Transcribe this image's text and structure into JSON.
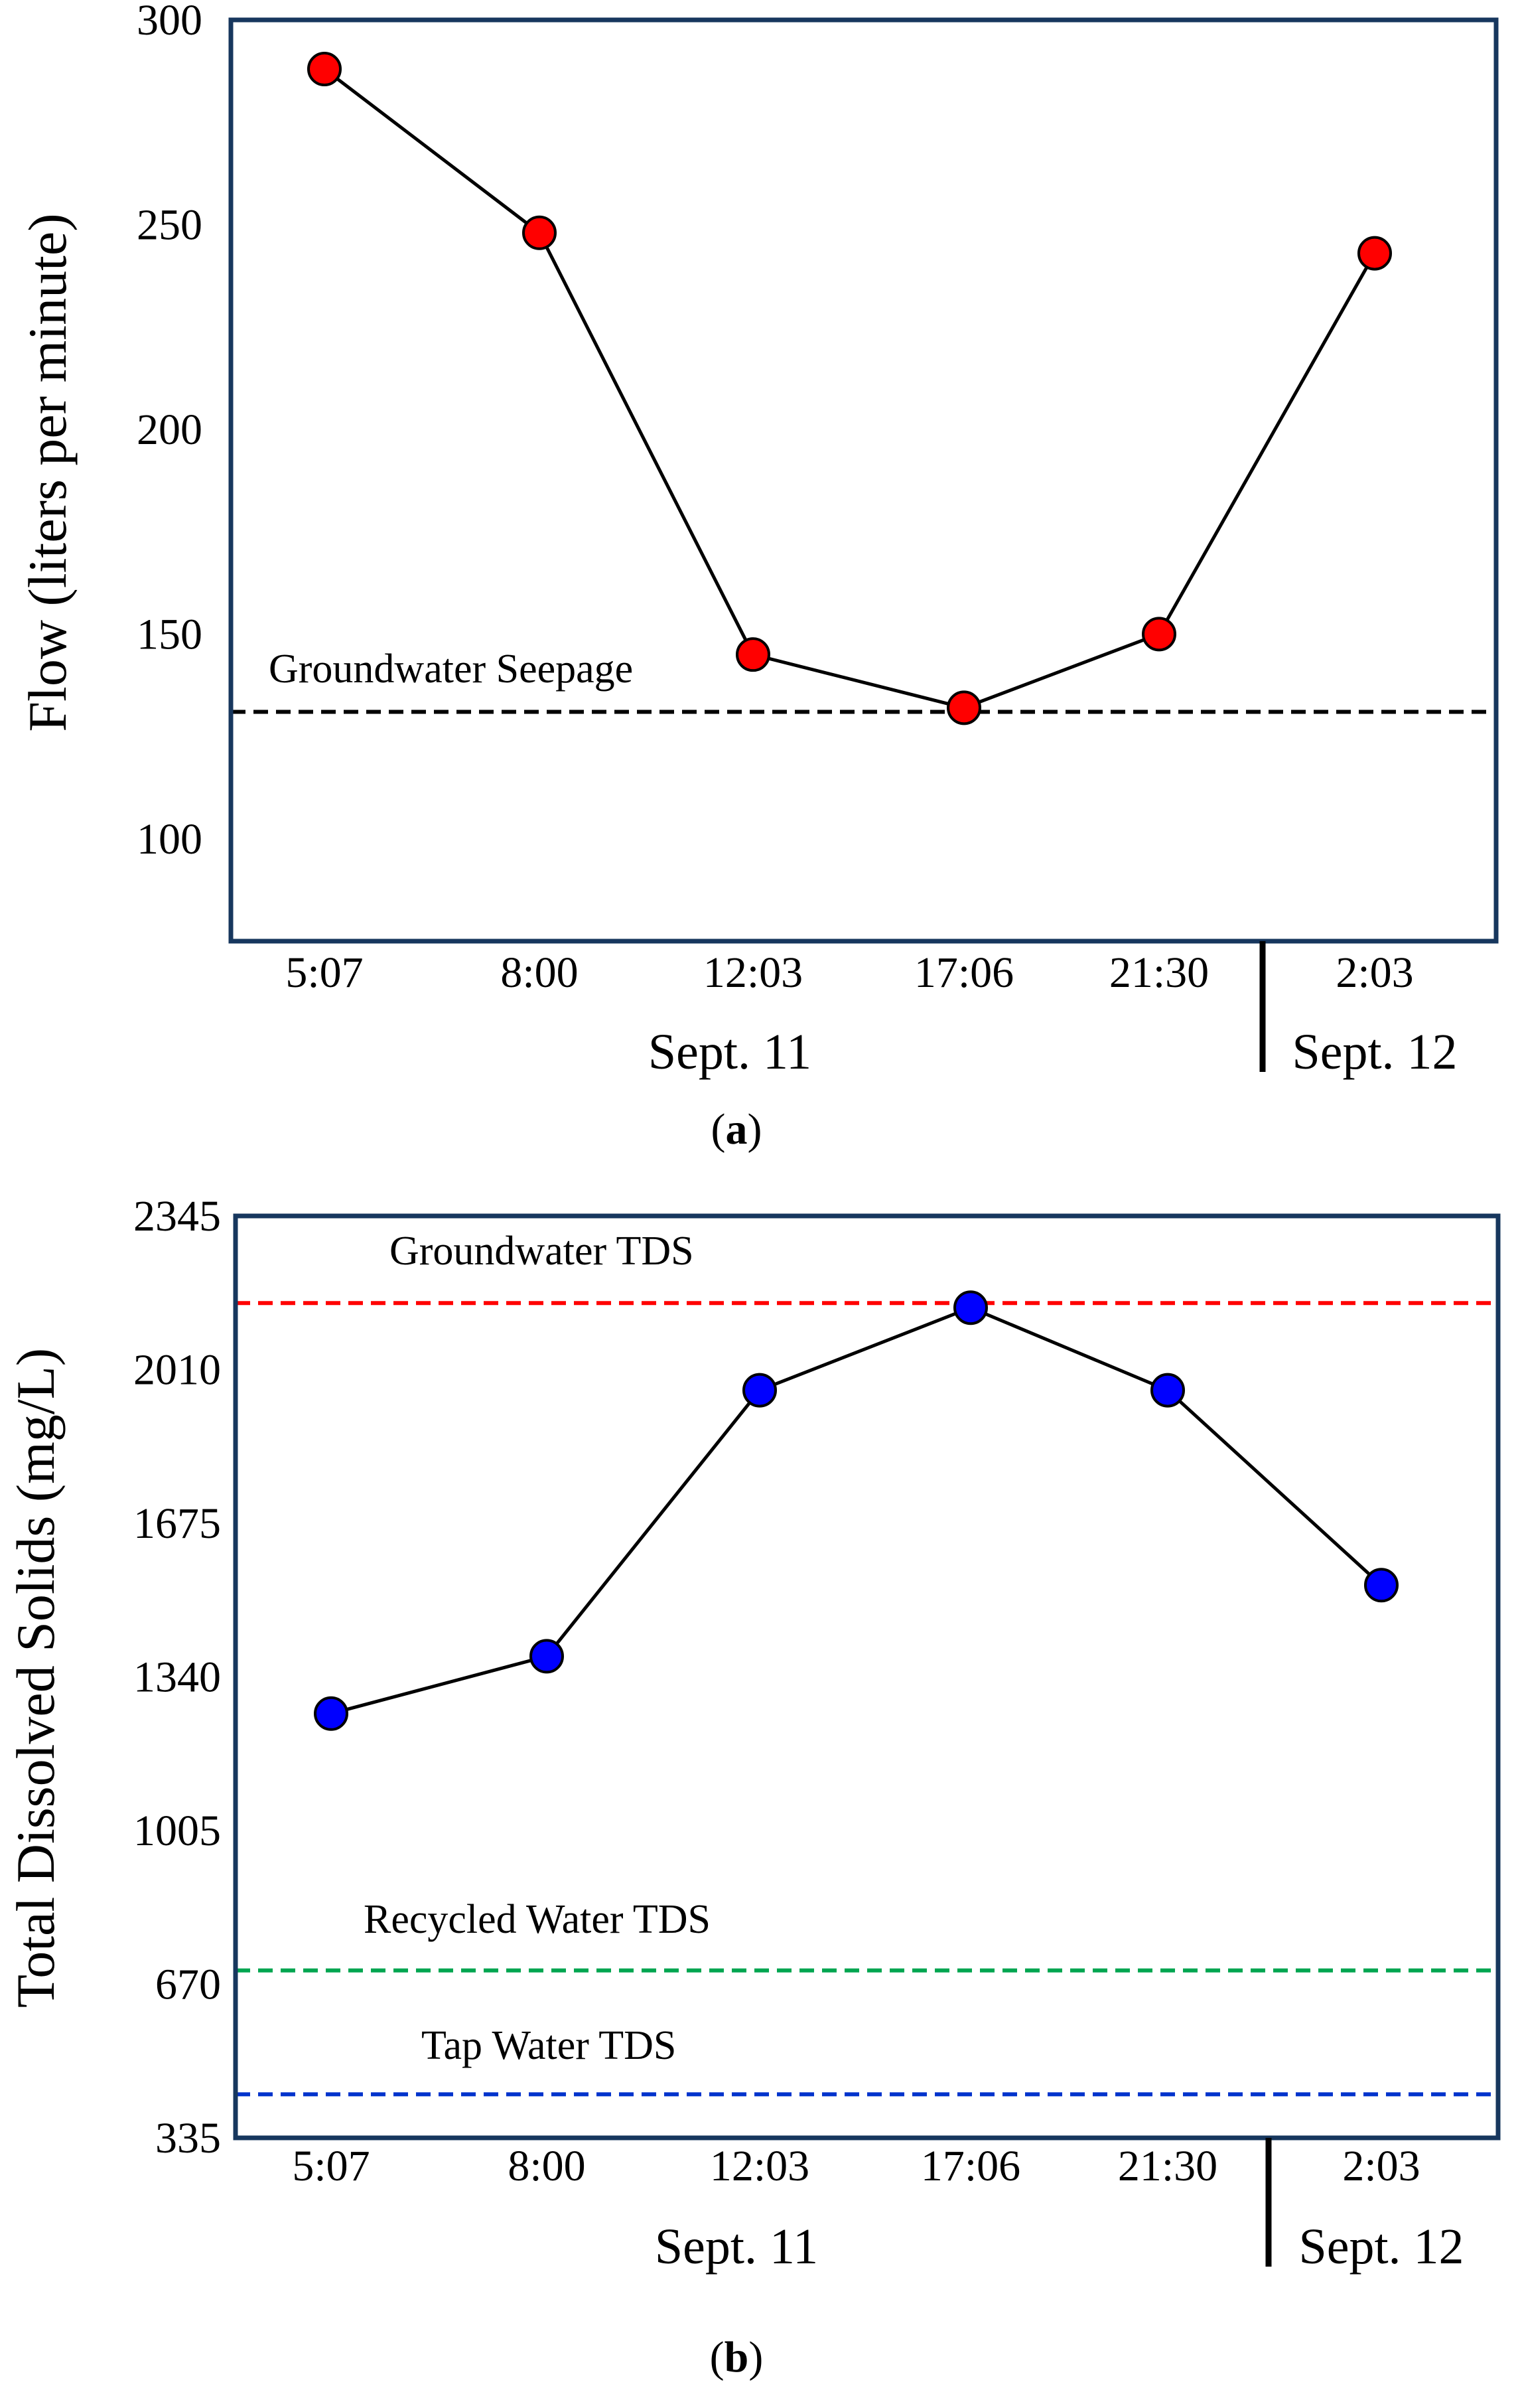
{
  "chart_data": [
    {
      "type": "line",
      "panel_label": "a",
      "ylabel": "Flow (liters per minute)",
      "categories": [
        "5:07",
        "8:00",
        "12:03",
        "17:06",
        "21:30",
        "2:03"
      ],
      "date_groups": [
        {
          "label": "Sept. 11",
          "from": 0,
          "to": 4
        },
        {
          "label": "Sept. 12",
          "from": 5,
          "to": 5
        }
      ],
      "ylim": [
        75,
        300
      ],
      "yticks": [
        100,
        150,
        200,
        250,
        300
      ],
      "series": [
        {
          "name": "Flow",
          "values": [
            288,
            248,
            145,
            132,
            150,
            243
          ],
          "marker_color": "#ff0000"
        }
      ],
      "reference_lines": [
        {
          "label": "Groundwater Seepage",
          "value": 131,
          "color": "#000000"
        }
      ]
    },
    {
      "type": "line",
      "panel_label": "b",
      "ylabel": "Total Dissolved Solids (mg/L)",
      "categories": [
        "5:07",
        "8:00",
        "12:03",
        "17:06",
        "21:30",
        "2:03"
      ],
      "date_groups": [
        {
          "label": "Sept. 11",
          "from": 0,
          "to": 4
        },
        {
          "label": "Sept. 12",
          "from": 5,
          "to": 5
        }
      ],
      "ylim": [
        335,
        2345
      ],
      "yticks": [
        335,
        670,
        1005,
        1340,
        1675,
        2010,
        2345
      ],
      "series": [
        {
          "name": "TDS",
          "values": [
            1260,
            1385,
            1965,
            2145,
            1965,
            1540
          ],
          "marker_color": "#0000ff"
        }
      ],
      "reference_lines": [
        {
          "label": "Groundwater TDS",
          "value": 2155,
          "color": "#ff0000"
        },
        {
          "label": "Recycled Water TDS",
          "value": 700,
          "color": "#00a550"
        },
        {
          "label": "Tap Water TDS",
          "value": 430,
          "color": "#0033cc"
        }
      ]
    }
  ]
}
